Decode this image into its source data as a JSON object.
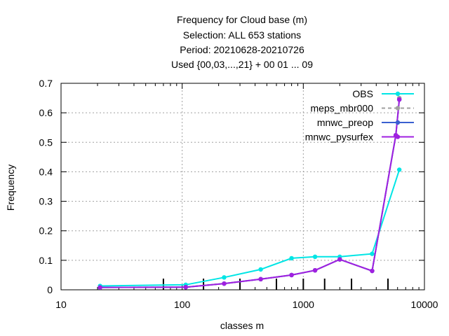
{
  "chart_data": {
    "type": "line",
    "title_lines": [
      "Frequency  for Cloud base (m)",
      "Selection: ALL    653 stations",
      "Period: 20210628-20210726",
      "Used {00,03,...,21} + 00 01 ... 09"
    ],
    "xlabel": "classes m",
    "ylabel": "Frequency",
    "x_scale": "log",
    "xlim": [
      10,
      10000
    ],
    "ylim": [
      0,
      0.7
    ],
    "x_ticks": [
      10,
      100,
      1000,
      10000
    ],
    "x_tick_labels": [
      "10",
      "100",
      "1000",
      "10000"
    ],
    "y_ticks": [
      0,
      0.1,
      0.2,
      0.3,
      0.4,
      0.5,
      0.6,
      0.7
    ],
    "y_tick_labels": [
      "0",
      "0.1",
      "0.2",
      "0.3",
      "0.4",
      "0.5",
      "0.6",
      "0.7"
    ],
    "grid": true,
    "legend_position": "top-right",
    "class_markers": [
      70,
      150,
      300,
      600,
      1000,
      1500,
      2500,
      5000
    ],
    "series": [
      {
        "name": "OBS",
        "color": "#00e5e5",
        "dash": false,
        "x": [
          21,
          107,
          222,
          445,
          800,
          1250,
          2000,
          3700,
          6200
        ],
        "y": [
          0.013,
          0.017,
          0.042,
          0.069,
          0.107,
          0.112,
          0.112,
          0.122,
          0.407
        ]
      },
      {
        "name": "meps_mbr000",
        "color": "#a0a0a0",
        "dash": true,
        "x": [
          21,
          107,
          222,
          445,
          800,
          1250,
          2000,
          3700,
          5800,
          6200
        ],
        "y": [
          0.008,
          0.009,
          0.021,
          0.036,
          0.05,
          0.066,
          0.103,
          0.064,
          0.524,
          0.65
        ]
      },
      {
        "name": "mnwc_preop",
        "color": "#3a5fd0",
        "dash": false,
        "x": [
          21,
          107,
          222,
          445,
          800,
          1250,
          2000,
          3700,
          5800,
          6200
        ],
        "y": [
          0.008,
          0.009,
          0.021,
          0.036,
          0.05,
          0.066,
          0.103,
          0.064,
          0.524,
          0.645
        ]
      },
      {
        "name": "mnwc_pysurfex",
        "color": "#a020e0",
        "dash": false,
        "x": [
          21,
          107,
          222,
          445,
          800,
          1250,
          2000,
          3700,
          5800,
          6200
        ],
        "y": [
          0.008,
          0.009,
          0.021,
          0.036,
          0.05,
          0.066,
          0.103,
          0.064,
          0.524,
          0.645
        ]
      }
    ]
  }
}
